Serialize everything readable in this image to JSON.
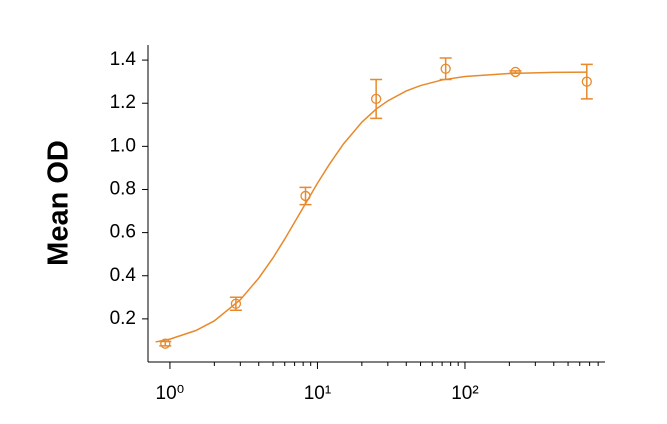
{
  "chart_data": {
    "type": "scatter",
    "ylabel": "Mean OD",
    "xscale": "log",
    "xlim": [
      0.71,
      890
    ],
    "ylim": [
      0,
      1.47
    ],
    "xticks": [
      {
        "value": 1,
        "label": "10⁰"
      },
      {
        "value": 10,
        "label": "10¹"
      },
      {
        "value": 100,
        "label": "10²"
      }
    ],
    "xminorticks": [
      2,
      3,
      4,
      5,
      6,
      7,
      8,
      9,
      20,
      30,
      40,
      50,
      60,
      70,
      80,
      90,
      200,
      300,
      400,
      500,
      600,
      700,
      800
    ],
    "yticks": [
      0.2,
      0.4,
      0.6,
      0.8,
      {
        "value": 1,
        "label": "1.0"
      },
      1.2,
      1.4
    ],
    "series": [
      {
        "type": "scatter",
        "color": "#e8892b",
        "x": [
          0.93,
          2.8,
          8.3,
          25,
          74,
          220,
          670
        ],
        "values": [
          0.085,
          0.27,
          0.77,
          1.22,
          1.36,
          1.345,
          1.3
        ],
        "errors": [
          0.01,
          0.03,
          0.04,
          0.09,
          0.05,
          0.005,
          0.08
        ]
      },
      {
        "type": "line",
        "color": "#e8892b",
        "x": [
          0.8,
          1,
          1.5,
          2,
          3,
          4,
          5,
          6,
          8,
          10,
          12,
          15,
          20,
          25,
          30,
          40,
          50,
          70,
          100,
          200,
          400,
          670
        ],
        "values": [
          0.093,
          0.106,
          0.146,
          0.191,
          0.289,
          0.389,
          0.483,
          0.57,
          0.716,
          0.829,
          0.915,
          1.011,
          1.112,
          1.173,
          1.211,
          1.257,
          1.282,
          1.308,
          1.324,
          1.338,
          1.343,
          1.344
        ]
      }
    ]
  }
}
